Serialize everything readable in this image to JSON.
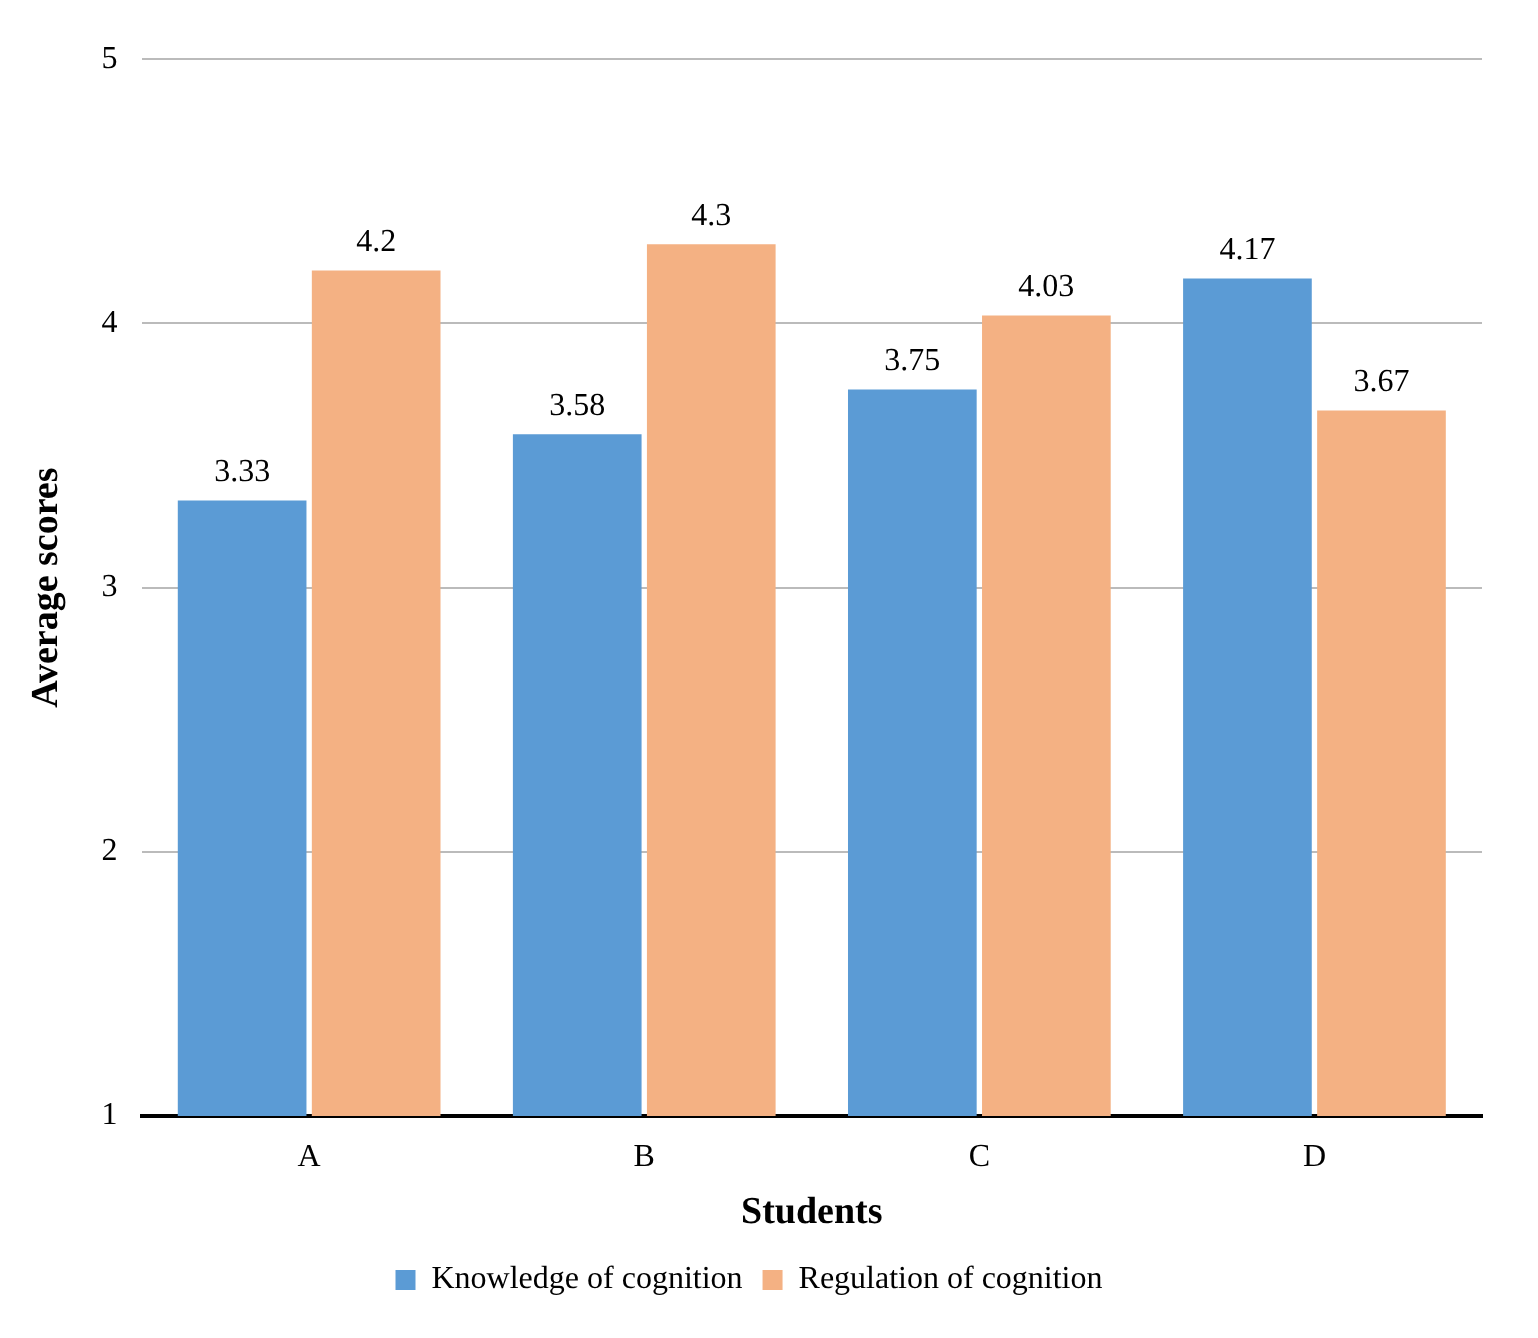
{
  "chart_data": {
    "type": "bar",
    "xlabel": "Students",
    "ylabel": "Average scores",
    "categories": [
      "A",
      "B",
      "C",
      "D"
    ],
    "series": [
      {
        "name": "Knowledge of cognition",
        "color": "#5b9bd5",
        "values": [
          3.33,
          3.58,
          3.75,
          4.17
        ]
      },
      {
        "name": "Regulation of cognition",
        "color": "#f4b183",
        "values": [
          4.2,
          4.3,
          4.03,
          3.67
        ]
      }
    ],
    "ylim": [
      1,
      5
    ],
    "yticks": [
      1,
      2,
      3,
      4,
      5
    ],
    "grid": "y",
    "legend": "bottom",
    "data_labels": true
  }
}
